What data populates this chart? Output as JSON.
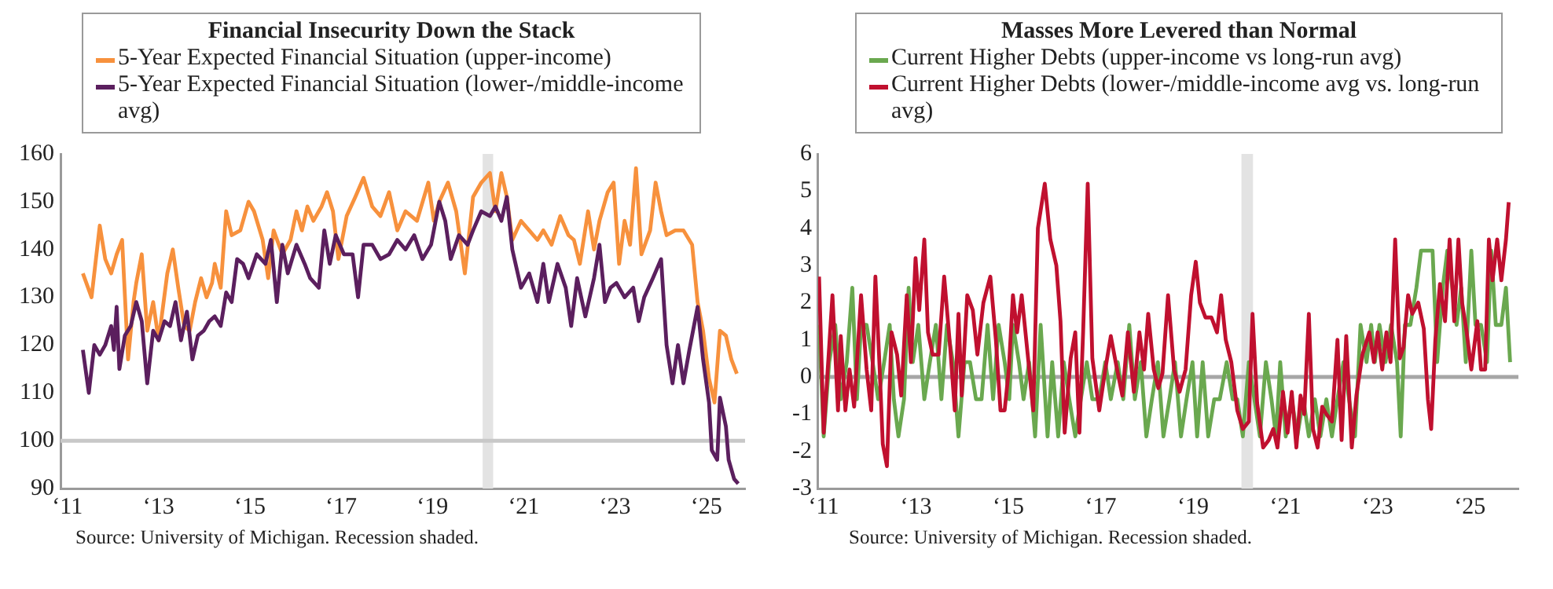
{
  "chart_data": [
    {
      "type": "line",
      "title": "Financial Insecurity Down the Stack",
      "legend": "top",
      "marker": "none",
      "series": [
        {
          "name": "5-Year Expected Financial Situation (upper-income)",
          "color": "#f7913d",
          "x": [
            11.34,
            11.53,
            11.71,
            11.83,
            11.96,
            12.08,
            12.2,
            12.33,
            12.45,
            12.51,
            12.63,
            12.75,
            12.88,
            13.0,
            13.19,
            13.31,
            13.43,
            13.56,
            13.68,
            13.8,
            13.93,
            14.05,
            14.17,
            14.23,
            14.36,
            14.48,
            14.6,
            14.79,
            14.97,
            15.09,
            15.28,
            15.4,
            15.52,
            15.71,
            15.89,
            16.02,
            16.14,
            16.26,
            16.39,
            16.57,
            16.69,
            16.82,
            16.94,
            17.12,
            17.31,
            17.49,
            17.68,
            17.86,
            18.05,
            18.23,
            18.41,
            18.66,
            18.91,
            19.03,
            19.15,
            19.34,
            19.52,
            19.71,
            19.89,
            20.07,
            20.26,
            20.38,
            20.51,
            20.63,
            20.75,
            20.94,
            21.12,
            21.3,
            21.43,
            21.61,
            21.8,
            21.98,
            22.1,
            22.23,
            22.41,
            22.54,
            22.66,
            22.84,
            22.97,
            23.09,
            23.21,
            23.33,
            23.46,
            23.58,
            23.77,
            23.89,
            24.01,
            24.13,
            24.32,
            24.5,
            24.69,
            24.81,
            24.93,
            25.06,
            25.18,
            25.3,
            25.43,
            25.55,
            25.67
          ],
          "values": [
            135,
            130,
            145,
            138,
            135,
            139,
            142,
            117,
            129,
            133,
            139,
            123,
            129,
            121,
            135,
            140,
            132,
            124,
            123,
            129,
            134,
            130,
            133,
            137,
            132,
            148,
            143,
            144,
            150,
            148,
            142,
            134,
            144,
            139,
            142,
            148,
            144,
            149,
            146,
            149,
            152,
            148,
            138,
            147,
            151,
            155,
            149,
            147,
            152,
            144,
            148,
            146,
            154,
            146,
            150,
            154,
            148,
            135,
            151,
            154,
            156,
            148,
            156,
            151,
            142,
            146,
            144,
            142,
            144,
            141,
            147,
            143,
            142,
            137,
            148,
            140,
            146,
            152,
            154,
            137,
            146,
            141,
            157,
            139,
            144,
            154,
            148,
            143,
            144,
            144,
            141,
            129,
            123,
            113,
            108,
            123,
            122,
            117,
            114
          ]
        },
        {
          "name": "5-Year Expected Financial Situation (lower-/middle-income avg)",
          "color": "#5b1f5e",
          "x": [
            11.34,
            11.47,
            11.59,
            11.71,
            11.83,
            11.96,
            12.02,
            12.08,
            12.14,
            12.26,
            12.39,
            12.51,
            12.63,
            12.75,
            12.88,
            13.0,
            13.13,
            13.25,
            13.37,
            13.49,
            13.62,
            13.74,
            13.86,
            13.99,
            14.11,
            14.23,
            14.36,
            14.48,
            14.6,
            14.72,
            14.85,
            14.97,
            15.15,
            15.34,
            15.46,
            15.59,
            15.71,
            15.83,
            16.02,
            16.2,
            16.32,
            16.51,
            16.63,
            16.75,
            16.88,
            17.06,
            17.25,
            17.37,
            17.49,
            17.68,
            17.86,
            18.05,
            18.23,
            18.41,
            18.6,
            18.78,
            18.97,
            19.15,
            19.28,
            19.4,
            19.58,
            19.77,
            19.89,
            20.07,
            20.26,
            20.38,
            20.51,
            20.63,
            20.75,
            20.94,
            21.12,
            21.3,
            21.43,
            21.55,
            21.74,
            21.92,
            22.04,
            22.17,
            22.35,
            22.54,
            22.66,
            22.78,
            22.9,
            23.03,
            23.21,
            23.4,
            23.52,
            23.64,
            23.83,
            24.01,
            24.13,
            24.26,
            24.38,
            24.5,
            24.63,
            24.81,
            24.93,
            25.06,
            25.12,
            25.24,
            25.3,
            25.43,
            25.49,
            25.61,
            25.7
          ],
          "values": [
            119,
            110,
            120,
            118,
            120,
            124,
            119,
            128,
            115,
            122,
            124,
            129,
            125,
            112,
            123,
            121,
            125,
            124,
            129,
            121,
            127,
            117,
            122,
            123,
            125,
            126,
            124,
            131,
            129,
            138,
            137,
            134,
            139,
            137,
            142,
            129,
            141,
            135,
            141,
            137,
            134,
            132,
            144,
            137,
            143,
            139,
            139,
            130,
            141,
            141,
            138,
            139,
            142,
            140,
            143,
            138,
            141,
            150,
            146,
            138,
            143,
            141,
            144,
            148,
            147,
            149,
            146,
            151,
            140,
            132,
            135,
            129,
            137,
            129,
            137,
            132,
            124,
            134,
            126,
            134,
            141,
            129,
            132,
            133,
            130,
            132,
            125,
            130,
            134,
            138,
            120,
            112,
            120,
            112,
            119,
            128,
            117,
            108,
            98,
            96,
            109,
            103,
            96,
            92,
            91
          ]
        }
      ],
      "xlim": [
        10.85,
        25.85
      ],
      "xticks": [
        {
          "value": 11,
          "label": "‘11"
        },
        {
          "value": 13,
          "label": "‘13"
        },
        {
          "value": 15,
          "label": "‘15"
        },
        {
          "value": 17,
          "label": "‘17"
        },
        {
          "value": 19,
          "label": "‘19"
        },
        {
          "value": 21,
          "label": "‘21"
        },
        {
          "value": 23,
          "label": "‘23"
        },
        {
          "value": 25,
          "label": "‘25"
        }
      ],
      "ylim": [
        90,
        160
      ],
      "yticks": [
        90,
        100,
        110,
        120,
        130,
        140,
        150,
        160
      ],
      "ref_lines": [
        {
          "axis": "y",
          "value": 100,
          "color": "#c8c8c8"
        }
      ],
      "bands": [
        {
          "axis": "x",
          "from": 20.1,
          "to": 20.33,
          "color": "#e3e3e3"
        }
      ],
      "annotations": [
        "Source: University of Michigan. Recession shaded."
      ]
    },
    {
      "type": "line",
      "title": "Masses More Levered than Normal",
      "legend": "top",
      "marker": "none",
      "series": [
        {
          "name": "Current Higher Debts (upper-income vs long-run avg)",
          "color": "#6aa84f",
          "x": [
            10.9,
            11.0,
            11.12,
            11.25,
            11.37,
            11.5,
            11.62,
            11.72,
            11.81,
            11.93,
            12.06,
            12.18,
            12.31,
            12.43,
            12.52,
            12.62,
            12.74,
            12.84,
            12.93,
            13.05,
            13.18,
            13.3,
            13.43,
            13.55,
            13.67,
            13.8,
            13.92,
            14.05,
            14.17,
            14.3,
            14.42,
            14.55,
            14.67,
            14.79,
            14.92,
            15.02,
            15.1,
            15.23,
            15.33,
            15.45,
            15.58,
            15.7,
            15.85,
            15.95,
            16.08,
            16.2,
            16.32,
            16.45,
            16.57,
            16.7,
            16.82,
            16.97,
            17.1,
            17.22,
            17.37,
            17.49,
            17.62,
            17.74,
            17.87,
            17.99,
            18.11,
            18.24,
            18.36,
            18.49,
            18.61,
            18.74,
            18.86,
            18.99,
            19.09,
            19.21,
            19.33,
            19.46,
            19.58,
            19.73,
            19.86,
            19.96,
            20.08,
            20.21,
            20.33,
            20.45,
            20.58,
            20.7,
            20.8,
            20.89,
            21.01,
            21.14,
            21.26,
            21.39,
            21.51,
            21.64,
            21.76,
            21.89,
            22.01,
            22.13,
            22.26,
            22.38,
            22.51,
            22.63,
            22.76,
            22.86,
            22.94,
            23.04,
            23.17,
            23.29,
            23.42,
            23.5,
            23.59,
            23.71,
            23.84,
            23.94,
            24.19,
            24.29,
            24.41,
            24.51,
            24.62,
            24.71,
            24.81,
            24.91,
            25.03,
            25.12,
            25.24,
            25.37,
            25.46,
            25.56,
            25.68,
            25.78,
            25.87
          ],
          "values": [
            1.4,
            -1.6,
            0.4,
            1.4,
            -0.6,
            0.4,
            2.4,
            -0.6,
            1.4,
            1.4,
            0.4,
            -0.6,
            0.4,
            1.4,
            -0.6,
            -1.6,
            -0.6,
            2.4,
            0.4,
            1.4,
            -0.6,
            0.4,
            1.4,
            -0.6,
            1.4,
            0.4,
            -1.6,
            0.4,
            0.4,
            -0.6,
            -0.6,
            1.4,
            -0.6,
            1.4,
            0.4,
            -0.6,
            1.4,
            0.4,
            -0.6,
            0.4,
            -1.6,
            1.4,
            -1.6,
            0.4,
            -1.6,
            0.4,
            -0.6,
            -1.6,
            -0.6,
            0.4,
            -0.6,
            -0.6,
            0.4,
            -0.6,
            0.4,
            -0.6,
            1.4,
            -0.6,
            0.4,
            -1.6,
            -0.6,
            0.4,
            -1.6,
            -0.6,
            0.4,
            -1.6,
            -0.6,
            0.4,
            -1.6,
            0.4,
            -1.6,
            -0.6,
            -0.6,
            0.4,
            -0.6,
            -0.6,
            -1.6,
            0.4,
            -0.6,
            -1.6,
            0.4,
            -0.6,
            -1.6,
            0.4,
            -1.6,
            -0.6,
            -1.6,
            -0.6,
            -1.6,
            -0.6,
            -1.6,
            -0.6,
            -1.6,
            -0.6,
            0.4,
            -0.6,
            -1.6,
            1.4,
            0.4,
            1.4,
            0.4,
            1.4,
            0.4,
            1.4,
            0.4,
            -1.6,
            1.4,
            1.4,
            2.4,
            3.4,
            3.4,
            0.4,
            2.4,
            3.4,
            2.4,
            1.4,
            2.4,
            0.4,
            3.4,
            1.4,
            1.4,
            0.4,
            3.4,
            1.4,
            1.4,
            2.4,
            0.4
          ]
        },
        {
          "name": "Current Higher Debts (lower-/middle-income avg vs. long-run avg)",
          "color": "#c0102f",
          "x": [
            10.9,
            11.0,
            11.19,
            11.31,
            11.37,
            11.47,
            11.56,
            11.66,
            11.81,
            11.93,
            12.03,
            12.12,
            12.21,
            12.28,
            12.37,
            12.47,
            12.59,
            12.68,
            12.8,
            12.89,
            12.99,
            13.07,
            13.18,
            13.26,
            13.36,
            13.49,
            13.61,
            13.74,
            13.84,
            13.92,
            13.99,
            14.11,
            14.23,
            14.33,
            14.46,
            14.61,
            14.73,
            14.83,
            14.92,
            15.01,
            15.1,
            15.19,
            15.29,
            15.42,
            15.54,
            15.64,
            15.79,
            15.91,
            16.04,
            16.13,
            16.22,
            16.35,
            16.45,
            16.54,
            16.62,
            16.72,
            16.82,
            16.97,
            17.1,
            17.22,
            17.34,
            17.47,
            17.59,
            17.72,
            17.84,
            17.94,
            18.03,
            18.15,
            18.25,
            18.34,
            18.46,
            18.59,
            18.71,
            18.84,
            18.96,
            19.06,
            19.15,
            19.27,
            19.4,
            19.52,
            19.61,
            19.71,
            19.83,
            19.96,
            20.08,
            20.21,
            20.29,
            20.39,
            20.52,
            20.64,
            20.74,
            20.83,
            20.95,
            21.05,
            21.14,
            21.24,
            21.33,
            21.41,
            21.51,
            21.6,
            21.7,
            21.8,
            21.89,
            22.01,
            22.13,
            22.22,
            22.32,
            22.44,
            22.54,
            22.67,
            22.82,
            22.92,
            23.0,
            23.1,
            23.19,
            23.28,
            23.38,
            23.48,
            23.56,
            23.66,
            23.75,
            23.88,
            24.0,
            24.09,
            24.16,
            24.25,
            24.35,
            24.46,
            24.56,
            24.66,
            24.75,
            24.83,
            24.93,
            25.03,
            25.16,
            25.24,
            25.33,
            25.41,
            25.49,
            25.59,
            25.68,
            25.78,
            25.84
          ],
          "values": [
            2.7,
            -1.5,
            2.2,
            -0.9,
            1.1,
            -0.9,
            0.2,
            -0.8,
            2.2,
            0.2,
            -0.9,
            2.7,
            0.3,
            -1.8,
            -2.4,
            1.2,
            0.6,
            -0.5,
            2.2,
            0.4,
            3.2,
            1.8,
            3.7,
            1.2,
            0.6,
            0.6,
            2.7,
            0.8,
            -0.9,
            1.7,
            -0.5,
            2.2,
            1.8,
            0.6,
            2.0,
            2.7,
            1.0,
            -0.9,
            -0.9,
            0.2,
            2.2,
            1.2,
            2.2,
            0.6,
            -0.9,
            4.0,
            5.2,
            3.7,
            3.0,
            1.5,
            -1.5,
            0.5,
            1.2,
            -1.5,
            1.2,
            5.2,
            0.5,
            -0.9,
            0.2,
            1.1,
            0.3,
            -0.5,
            1.2,
            -0.4,
            1.2,
            0.2,
            1.7,
            0.2,
            -0.3,
            0.1,
            2.2,
            0.2,
            -0.4,
            0.2,
            2.2,
            3.1,
            2.0,
            1.6,
            1.6,
            1.2,
            2.2,
            1.0,
            0.4,
            -0.9,
            -1.4,
            -1.2,
            1.7,
            -0.7,
            -1.9,
            -1.7,
            -1.4,
            -1.9,
            -0.4,
            -1.5,
            -0.4,
            -1.9,
            -0.5,
            -1.0,
            1.7,
            -1.4,
            -1.9,
            -0.8,
            -1.0,
            -1.2,
            1.0,
            -1.7,
            1.1,
            -1.9,
            -0.5,
            0.6,
            1.2,
            0.4,
            1.2,
            0.2,
            1.2,
            0.4,
            3.7,
            0.5,
            0.8,
            2.2,
            1.7,
            2.0,
            1.3,
            -0.6,
            -1.4,
            1.0,
            2.5,
            1.5,
            3.7,
            1.5,
            3.7,
            2.0,
            1.2,
            0.2,
            1.5,
            0.2,
            0.2,
            3.7,
            2.6,
            3.7,
            2.6,
            3.7,
            4.7
          ]
        }
      ],
      "xlim": [
        10.88,
        26.05
      ],
      "xticks": [
        {
          "value": 11,
          "label": "‘11"
        },
        {
          "value": 13,
          "label": "‘13"
        },
        {
          "value": 15,
          "label": "‘15"
        },
        {
          "value": 17,
          "label": "‘17"
        },
        {
          "value": 19,
          "label": "‘19"
        },
        {
          "value": 21,
          "label": "‘21"
        },
        {
          "value": 23,
          "label": "‘23"
        },
        {
          "value": 25,
          "label": "‘25"
        }
      ],
      "ylim": [
        -3,
        6
      ],
      "yticks": [
        -3,
        -2,
        -1,
        0,
        1,
        2,
        3,
        4,
        5,
        6
      ],
      "ref_lines": [
        {
          "axis": "y",
          "value": 0,
          "color": "#a6a6a6"
        }
      ],
      "bands": [
        {
          "axis": "x",
          "from": 20.05,
          "to": 20.3,
          "color": "#e3e3e3"
        }
      ],
      "annotations": [
        "Source: University of Michigan. Recession shaded."
      ]
    }
  ]
}
